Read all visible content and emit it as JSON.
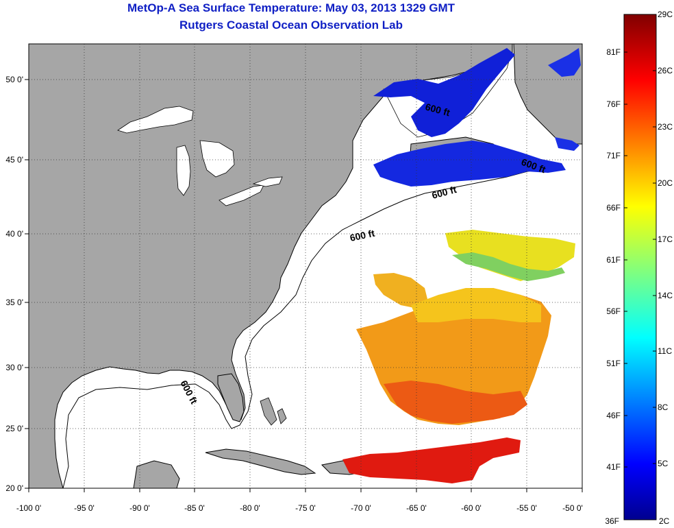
{
  "title_line1": "MetOp-A Sea Surface Temperature:  May 03, 2013 1329 GMT",
  "title_line2": "Rutgers Coastal Ocean Observation Lab",
  "map": {
    "x_ticks": [
      "-100 0'",
      "-95 0'",
      "-90 0'",
      "-85 0'",
      "-80 0'",
      "-75 0'",
      "-70 0'",
      "-65 0'",
      "-60 0'",
      "-55 0'",
      "-50 0'"
    ],
    "y_ticks": [
      "50 0'",
      "45 0'",
      "40 0'",
      "35 0'",
      "30 0'",
      "25 0'",
      "20 0'"
    ],
    "lon_range": [
      -100,
      -50
    ],
    "lat_range": [
      20,
      52.5
    ],
    "contour_label": "600 ft",
    "colors": {
      "land": "#a6a6a6",
      "ocean": "#ffffff"
    }
  },
  "colorbar": {
    "celsius_labels": [
      "29C",
      "26C",
      "23C",
      "20C",
      "17C",
      "14C",
      "11C",
      "8C",
      "5C",
      "2C"
    ],
    "fahrenheit_labels": [
      "81F",
      "76F",
      "71F",
      "66F",
      "61F",
      "56F",
      "51F",
      "46F",
      "41F",
      "36F"
    ],
    "colormap": "jet"
  }
}
